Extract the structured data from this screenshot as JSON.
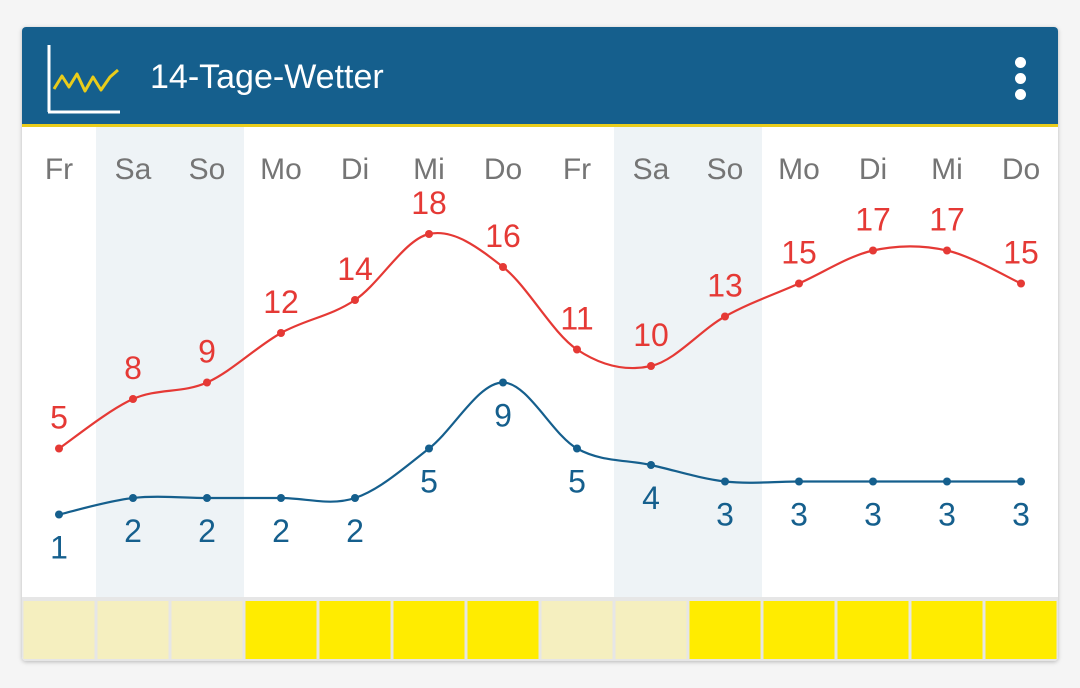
{
  "header": {
    "title": "14-Tage-Wetter",
    "icon": "chart-line-icon",
    "menu_icon": "more-vert-icon"
  },
  "colors": {
    "header_bg": "#155f8d",
    "accent_line": "#e9cc1b",
    "high_series": "#e53935",
    "low_series": "#155f8d",
    "weekend_band": "#eef3f6",
    "bar_bright": "#ffec00",
    "bar_pale": "#f5efbf"
  },
  "chart_data": {
    "type": "line",
    "categories": [
      "Fr",
      "Sa",
      "So",
      "Mo",
      "Di",
      "Mi",
      "Do",
      "Fr",
      "Sa",
      "So",
      "Mo",
      "Di",
      "Mi",
      "Do"
    ],
    "series": [
      {
        "values": [
          5,
          8,
          9,
          12,
          14,
          18,
          16,
          11,
          10,
          13,
          15,
          17,
          17,
          15
        ]
      },
      {
        "values": [
          1,
          2,
          2,
          2,
          2,
          5,
          9,
          5,
          4,
          3,
          3,
          3,
          3,
          3
        ]
      }
    ],
    "weekend_days": [
      1,
      2,
      8,
      9
    ],
    "bottom_bar_levels": [
      "pale",
      "pale",
      "pale",
      "bright",
      "bright",
      "bright",
      "bright",
      "pale",
      "pale",
      "bright",
      "bright",
      "bright",
      "bright",
      "bright"
    ],
    "grid": false
  }
}
